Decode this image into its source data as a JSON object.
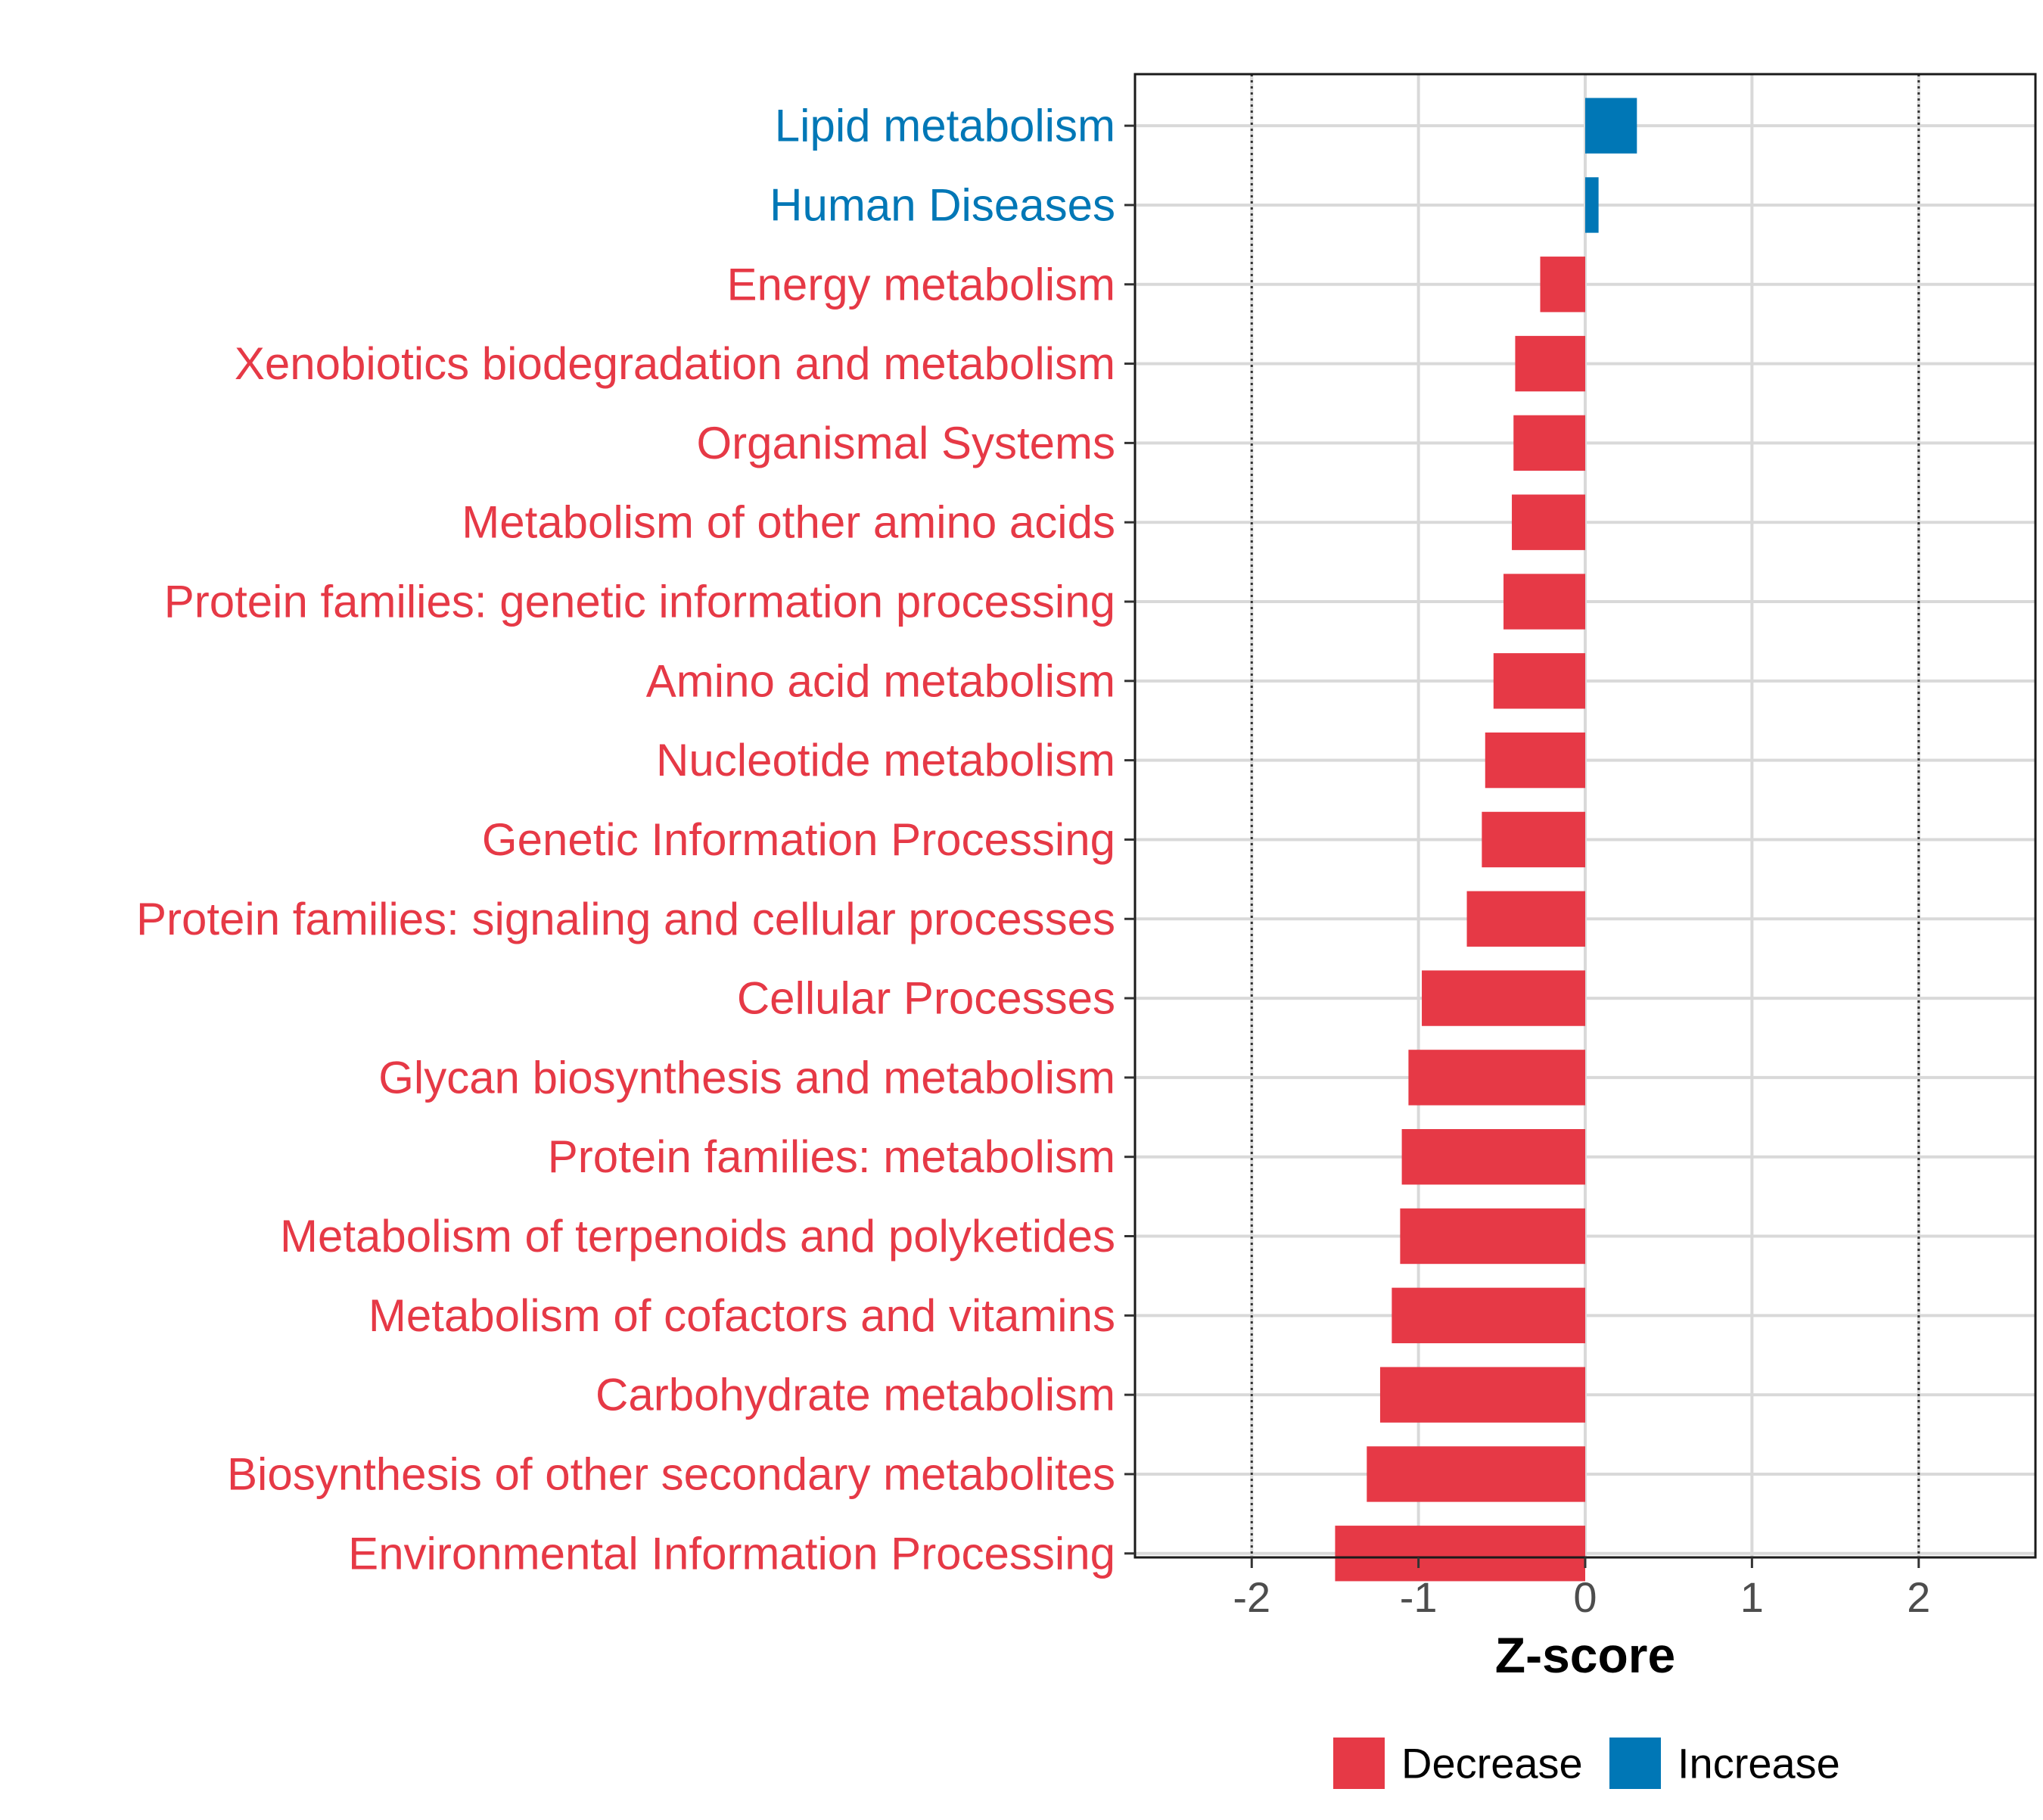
{
  "chart_data": {
    "type": "bar",
    "orientation": "horizontal",
    "categories": [
      "Lipid metabolism",
      "Human Diseases",
      "Energy metabolism",
      "Xenobiotics biodegradation and metabolism",
      "Organismal Systems",
      "Metabolism of other amino acids",
      "Protein families: genetic information processing",
      "Amino acid metabolism",
      "Nucleotide metabolism",
      "Genetic Information Processing",
      "Protein families: signaling and cellular processes",
      "Cellular Processes",
      "Glycan biosynthesis and metabolism",
      "Protein families: metabolism",
      "Metabolism of terpenoids and polyketides",
      "Metabolism of cofactors and vitamins",
      "Carbohydrate metabolism",
      "Biosynthesis of other secondary metabolites",
      "Environmental Information Processing"
    ],
    "values": [
      0.31,
      0.08,
      -0.27,
      -0.42,
      -0.43,
      -0.44,
      -0.49,
      -0.55,
      -0.6,
      -0.62,
      -0.71,
      -0.98,
      -1.06,
      -1.1,
      -1.11,
      -1.16,
      -1.23,
      -1.31,
      -1.5
    ],
    "direction": [
      "Increase",
      "Increase",
      "Decrease",
      "Decrease",
      "Decrease",
      "Decrease",
      "Decrease",
      "Decrease",
      "Decrease",
      "Decrease",
      "Decrease",
      "Decrease",
      "Decrease",
      "Decrease",
      "Decrease",
      "Decrease",
      "Decrease",
      "Decrease",
      "Decrease"
    ],
    "xlabel": "Z-score",
    "ylabel": "",
    "xlim": [
      -2.7,
      2.7
    ],
    "xticks": [
      -2,
      -1,
      0,
      1,
      2
    ],
    "xtick_labels": [
      "-2",
      "-1",
      "0",
      "1",
      "2"
    ],
    "reference_lines": [
      -2,
      2
    ],
    "grid": true,
    "legend": {
      "placement": "bottom",
      "entries": [
        {
          "label": "Decrease",
          "color": "#e63946"
        },
        {
          "label": "Increase",
          "color": "#0077b6"
        }
      ]
    },
    "colors": {
      "Decrease": "#e63946",
      "Increase": "#0077b6"
    }
  }
}
